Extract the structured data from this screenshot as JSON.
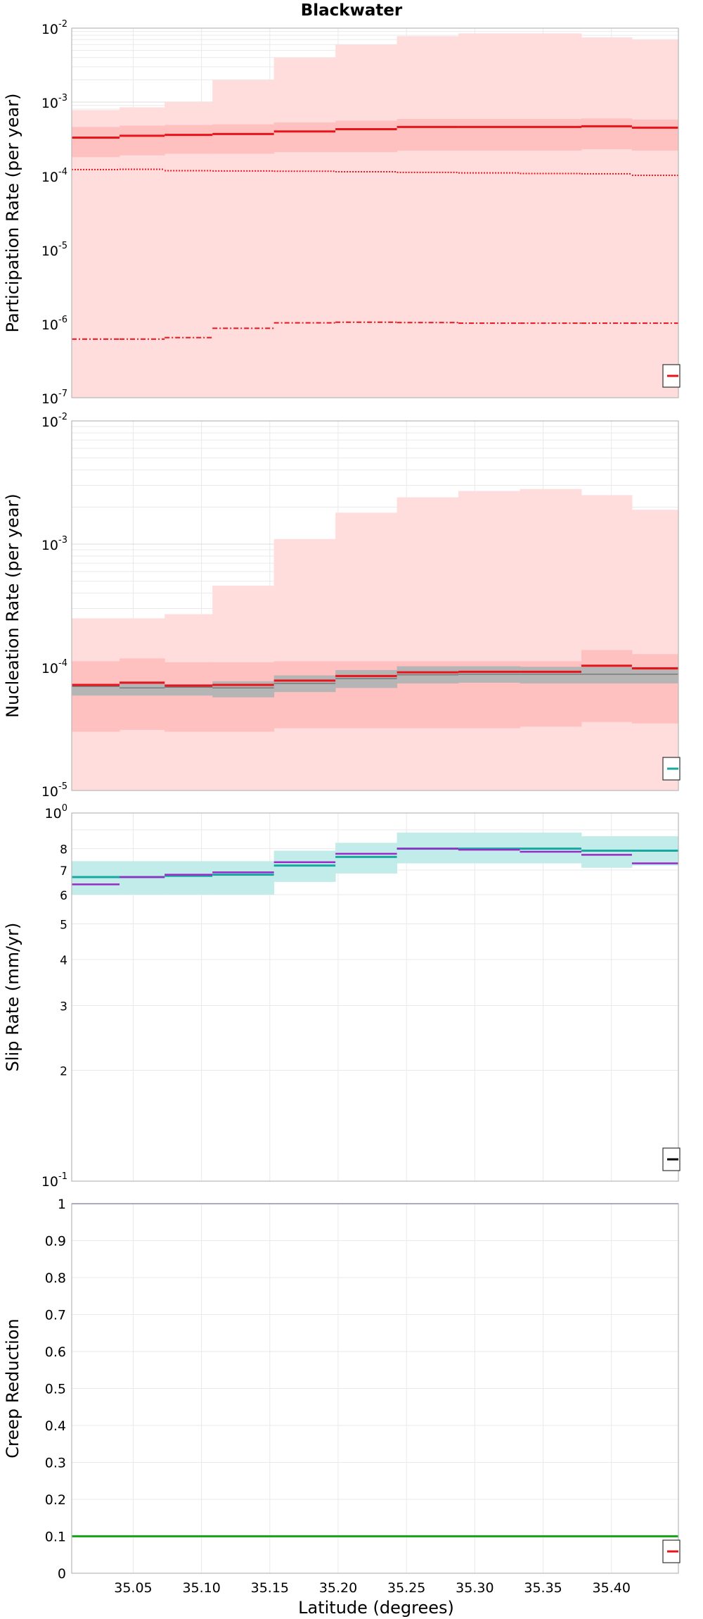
{
  "title": "Blackwater",
  "x_axis": {
    "label": "Latitude (degrees)",
    "range": [
      35.005,
      35.449
    ],
    "ticks": [
      "35.05",
      "35.10",
      "35.15",
      "35.20",
      "35.25",
      "35.30",
      "35.35",
      "35.40"
    ]
  },
  "bins": [
    35.005,
    35.04,
    35.073,
    35.108,
    35.153,
    35.198,
    35.243,
    35.288,
    35.333,
    35.378,
    35.415,
    35.449
  ],
  "colors": {
    "red": "#e8141c",
    "red_band": "#ffdddd",
    "red_band_mid": "#ffc0c0",
    "gray_band": "#b5b5b5",
    "teal": "#18a8a0",
    "teal_band": "#c2ecea",
    "purple": "#9b28c8",
    "navy": "#2c2c98",
    "green": "#18a818",
    "grid": "#e9e9e9"
  },
  "chart_data": [
    {
      "type": "line",
      "name": "participation",
      "ylabel": "Participation Rate (per year)",
      "scale": "log",
      "ylim": [
        1e-07,
        0.01
      ],
      "ytick_labels": [
        {
          "base": "10",
          "exp": "-7"
        },
        {
          "base": "10",
          "exp": "-6"
        },
        {
          "base": "10",
          "exp": "-5"
        },
        {
          "base": "10",
          "exp": "-4"
        },
        {
          "base": "10",
          "exp": "-3"
        },
        {
          "base": "10",
          "exp": "-2"
        }
      ],
      "legend": "bottom-right",
      "series": [
        {
          "kind": "band",
          "color": "red_band",
          "lower": [
            1e-07,
            1e-07,
            1e-07,
            1e-07,
            1e-07,
            1e-07,
            1e-07,
            1e-07,
            1e-07,
            1e-07,
            1e-07
          ],
          "upper": [
            0.00078,
            0.00085,
            0.001,
            0.002,
            0.004,
            0.006,
            0.0078,
            0.0085,
            0.0085,
            0.0075,
            0.007
          ]
        },
        {
          "kind": "band",
          "color": "red_band_mid",
          "lower": [
            0.00018,
            0.00019,
            0.0002,
            0.0002,
            0.00021,
            0.00021,
            0.00022,
            0.00022,
            0.00022,
            0.00023,
            0.00022
          ],
          "upper": [
            0.00046,
            0.00048,
            0.00049,
            0.0005,
            0.00053,
            0.00056,
            0.00059,
            0.00059,
            0.00059,
            0.0006,
            0.00058
          ]
        },
        {
          "kind": "step",
          "color": "red",
          "width": 3,
          "dash": "",
          "values": [
            0.00033,
            0.00035,
            0.00036,
            0.00037,
            0.0004,
            0.00043,
            0.00046,
            0.00046,
            0.00046,
            0.00047,
            0.00045
          ]
        },
        {
          "kind": "step",
          "color": "red",
          "width": 2,
          "dash": "2,2",
          "values": [
            0.000122,
            0.000123,
            0.000118,
            0.000117,
            0.000116,
            0.000114,
            0.000112,
            0.00011,
            0.000108,
            0.000107,
            0.000102
          ]
        },
        {
          "kind": "step",
          "color": "red",
          "width": 2,
          "dash": "7,3,2,3",
          "values": [
            6.2e-07,
            6.2e-07,
            6.5e-07,
            8.7e-07,
            1.03e-06,
            1.05e-06,
            1.04e-06,
            1.02e-06,
            1.02e-06,
            1.02e-06,
            1.02e-06
          ]
        }
      ]
    },
    {
      "type": "line",
      "name": "nucleation",
      "ylabel": "Nucleation Rate (per year)",
      "scale": "log",
      "ylim": [
        1e-05,
        0.01
      ],
      "ytick_labels": [
        {
          "base": "10",
          "exp": "-5"
        },
        {
          "base": "10",
          "exp": "-4"
        },
        {
          "base": "10",
          "exp": "-3"
        },
        {
          "base": "10",
          "exp": "-2"
        }
      ],
      "legend": "bottom-right",
      "series": [
        {
          "kind": "band",
          "color": "red_band",
          "lower": [
            1e-05,
            1e-05,
            1e-05,
            1e-05,
            1e-05,
            1e-05,
            1e-05,
            1e-05,
            1e-05,
            1e-05,
            1e-05
          ],
          "upper": [
            0.00025,
            0.00025,
            0.00027,
            0.00046,
            0.0011,
            0.0018,
            0.0024,
            0.0027,
            0.0028,
            0.0025,
            0.0019
          ]
        },
        {
          "kind": "band",
          "color": "red_band_mid",
          "lower": [
            3e-05,
            3.1e-05,
            3e-05,
            3e-05,
            3.2e-05,
            3.2e-05,
            3.2e-05,
            3.2e-05,
            3.3e-05,
            3.6e-05,
            3.5e-05
          ],
          "upper": [
            0.000112,
            0.000118,
            0.00011,
            0.00011,
            0.000112,
            0.000112,
            0.000112,
            0.000112,
            0.000112,
            0.000138,
            0.000128
          ]
        },
        {
          "kind": "band",
          "color": "gray_band",
          "lower": [
            5.9e-05,
            5.9e-05,
            5.9e-05,
            5.7e-05,
            6.3e-05,
            6.8e-05,
            7.4e-05,
            7.5e-05,
            7.4e-05,
            7.4e-05,
            7.4e-05
          ],
          "upper": [
            7.3e-05,
            7.7e-05,
            7.3e-05,
            7.7e-05,
            8.6e-05,
            9.5e-05,
            0.000102,
            0.000102,
            0.000101,
            0.000101,
            0.000101
          ]
        },
        {
          "kind": "step",
          "color": "gray",
          "width": 1.5,
          "dash": "",
          "values": [
            7e-05,
            6.8e-05,
            6.9e-05,
            6.8e-05,
            7.4e-05,
            8.1e-05,
            8.7e-05,
            8.8e-05,
            8.8e-05,
            8.8e-05,
            8.8e-05
          ]
        },
        {
          "kind": "step",
          "color": "red",
          "width": 3,
          "dash": "",
          "values": [
            7.2e-05,
            7.5e-05,
            7.1e-05,
            7.2e-05,
            7.8e-05,
            8.5e-05,
            9.1e-05,
            9.2e-05,
            9.2e-05,
            0.000103,
            9.8e-05
          ]
        }
      ]
    },
    {
      "type": "line",
      "name": "slip",
      "ylabel": "Slip Rate (mm/yr)",
      "scale": "log",
      "ylim": [
        1,
        10
      ],
      "ytick_labels": [
        {
          "base": "10",
          "exp": "-1"
        },
        {
          "base": "2",
          "exp": ""
        },
        {
          "base": "3",
          "exp": ""
        },
        {
          "base": "4",
          "exp": ""
        },
        {
          "base": "5",
          "exp": ""
        },
        {
          "base": "6",
          "exp": ""
        },
        {
          "base": "7",
          "exp": ""
        },
        {
          "base": "8",
          "exp": ""
        },
        {
          "base": "10",
          "exp": "0"
        }
      ],
      "legend": "bottom-right",
      "series": [
        {
          "kind": "band",
          "color": "teal_band",
          "lower": [
            6.0,
            6.0,
            6.0,
            6.0,
            6.5,
            6.85,
            7.3,
            7.3,
            7.3,
            7.1,
            7.2
          ],
          "upper": [
            7.4,
            7.4,
            7.4,
            7.4,
            7.9,
            8.3,
            8.85,
            8.85,
            8.85,
            8.65,
            8.65
          ]
        },
        {
          "kind": "step",
          "color": "teal",
          "width": 3,
          "dash": "",
          "values": [
            6.7,
            6.7,
            6.75,
            6.8,
            7.2,
            7.6,
            8.0,
            8.0,
            8.0,
            7.9,
            7.9
          ]
        },
        {
          "kind": "step",
          "color": "purple",
          "width": 2.5,
          "dash": "",
          "values": [
            6.4,
            6.7,
            6.8,
            6.9,
            7.35,
            7.75,
            8.0,
            7.95,
            7.85,
            7.7,
            7.3
          ]
        }
      ]
    },
    {
      "type": "line",
      "name": "creep",
      "ylabel": "Creep Reduction",
      "scale": "linear",
      "ylim": [
        0,
        1
      ],
      "ytick_labels": [
        {
          "base": "0",
          "exp": ""
        },
        {
          "base": "0.1",
          "exp": ""
        },
        {
          "base": "0.2",
          "exp": ""
        },
        {
          "base": "0.3",
          "exp": ""
        },
        {
          "base": "0.4",
          "exp": ""
        },
        {
          "base": "0.5",
          "exp": ""
        },
        {
          "base": "0.6",
          "exp": ""
        },
        {
          "base": "0.7",
          "exp": ""
        },
        {
          "base": "0.8",
          "exp": ""
        },
        {
          "base": "0.9",
          "exp": ""
        },
        {
          "base": "1",
          "exp": ""
        }
      ],
      "legend": "bottom-right",
      "series": [
        {
          "kind": "hline",
          "color": "navy",
          "width": 1.5,
          "value": 1.0
        },
        {
          "kind": "hline",
          "color": "green",
          "width": 3,
          "value": 0.1
        }
      ]
    }
  ]
}
